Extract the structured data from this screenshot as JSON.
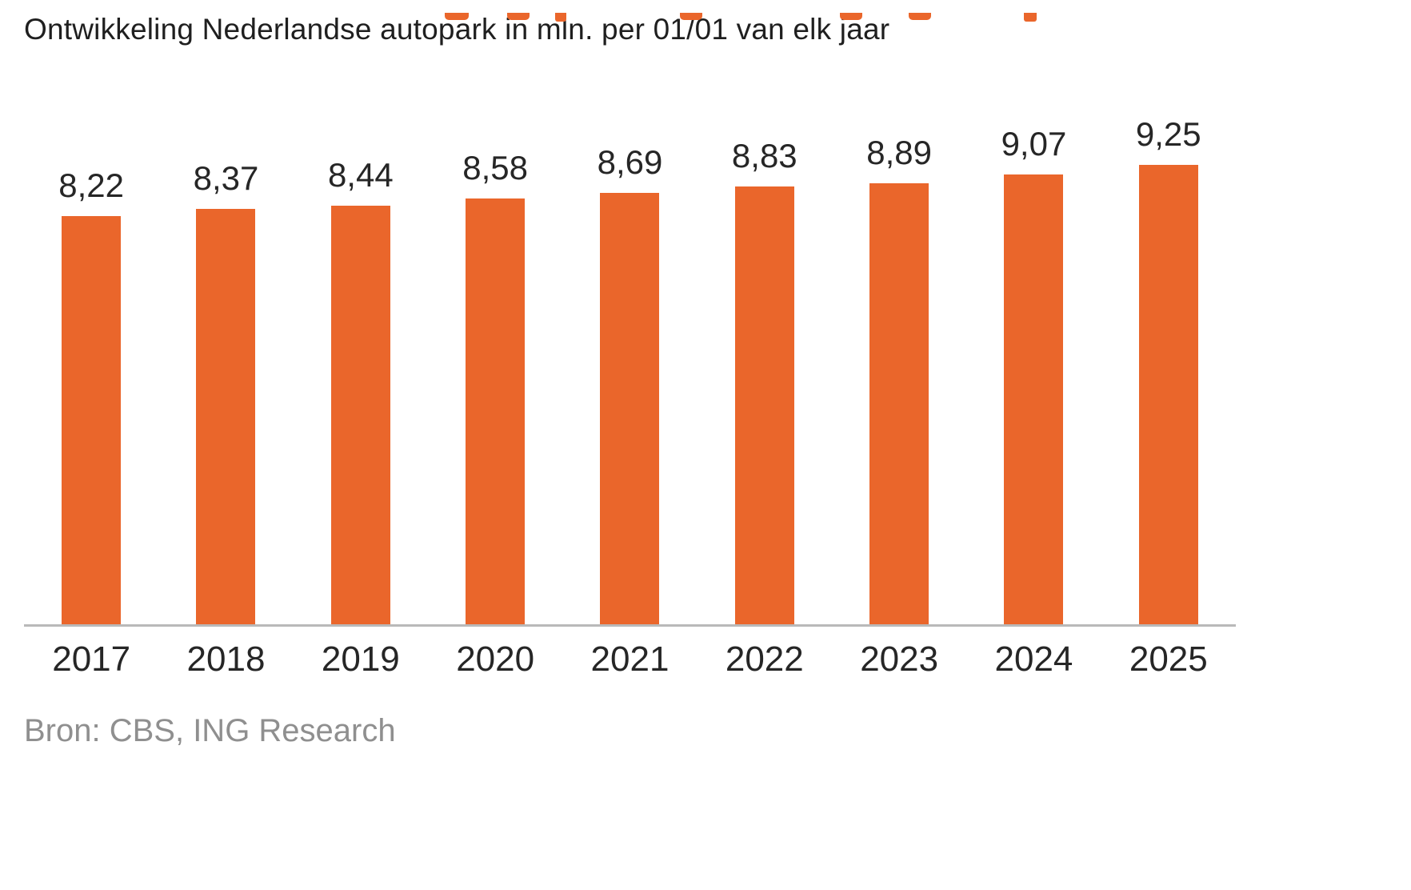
{
  "header": {
    "title": "Ontwikkeling Nederlandse autopark in mln. per 01/01 van elk jaar"
  },
  "footer": {
    "source": "Bron: CBS, ING Research"
  },
  "colors": {
    "bar": "#ea662b",
    "accent": "#ea662b",
    "title_text": "#1f1f1f",
    "label_text": "#262626",
    "axis_line": "#b9b9b9",
    "source_text": "#8f8f8f"
  },
  "chart_data": {
    "type": "bar",
    "title": "Ontwikkeling Nederlandse autopark in mln. per 01/01 van elk jaar",
    "categories": [
      "2017",
      "2018",
      "2019",
      "2020",
      "2021",
      "2022",
      "2023",
      "2024",
      "2025"
    ],
    "values": [
      8.22,
      8.37,
      8.44,
      8.58,
      8.69,
      8.83,
      8.89,
      9.07,
      9.25
    ],
    "value_labels": [
      "8,22",
      "8,37",
      "8,44",
      "8,58",
      "8,69",
      "8,83",
      "8,89",
      "9,07",
      "9,25"
    ],
    "xlabel": "",
    "ylabel": "",
    "unit": "mln",
    "ylim": [
      0,
      9.5
    ],
    "grid": false,
    "legend": false,
    "bar_color": "#ea662b",
    "source": "Bron: CBS, ING Research"
  }
}
